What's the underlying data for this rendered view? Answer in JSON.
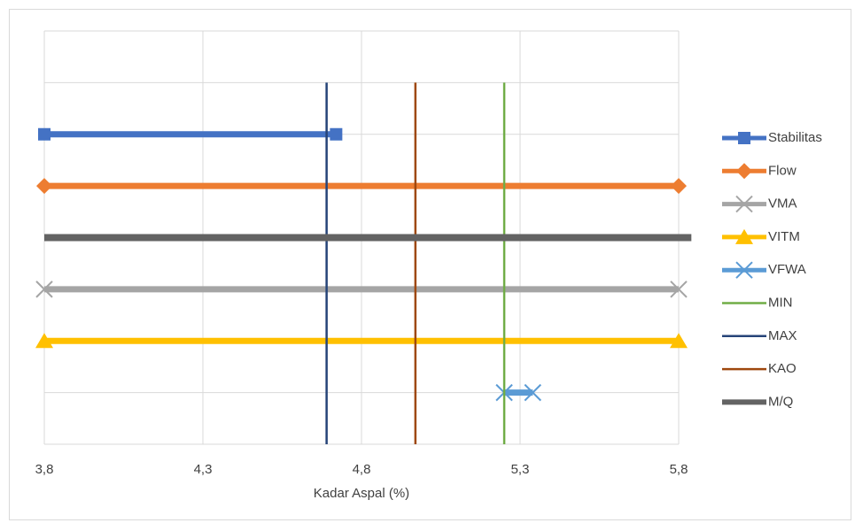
{
  "chart_data": {
    "type": "scatter",
    "x_label": "Kadar Aspal (%)",
    "xlim": [
      3.8,
      5.8
    ],
    "xticks": [
      {
        "value": 3.8,
        "label": "3,8"
      },
      {
        "value": 4.3,
        "label": "4,3"
      },
      {
        "value": 4.8,
        "label": "4,8"
      },
      {
        "value": 5.3,
        "label": "5,3"
      },
      {
        "value": 5.8,
        "label": "5,8"
      }
    ],
    "ylim": [
      0,
      8
    ],
    "yticks": [
      0,
      1,
      2,
      3,
      4,
      5,
      6,
      7,
      8
    ],
    "grid": true,
    "legend": "right",
    "series": [
      {
        "name": "Stabilitas",
        "color": "#4472c4",
        "marker": "square",
        "x": [
          3.8,
          4.72
        ],
        "values": [
          6,
          6
        ]
      },
      {
        "name": "Flow",
        "color": "#ed7d31",
        "marker": "diamond",
        "x": [
          3.8,
          5.8
        ],
        "values": [
          5,
          5
        ]
      },
      {
        "name": "VMA",
        "color": "#a5a5a5",
        "marker": "x",
        "x": [
          3.8,
          5.8
        ],
        "values": [
          3,
          3
        ]
      },
      {
        "name": "VITM",
        "color": "#ffc000",
        "marker": "triangle",
        "x": [
          3.8,
          5.8
        ],
        "values": [
          2,
          2
        ]
      },
      {
        "name": "VFWA",
        "color": "#5b9bd5",
        "marker": "x",
        "x": [
          5.25,
          5.34
        ],
        "values": [
          1,
          1
        ]
      },
      {
        "name": "MIN",
        "color": "#70ad47",
        "marker": "none",
        "x": [
          5.25,
          5.25
        ],
        "values": [
          0,
          7
        ]
      },
      {
        "name": "MAX",
        "color": "#264478",
        "marker": "none",
        "x": [
          4.69,
          4.69
        ],
        "values": [
          0,
          7
        ]
      },
      {
        "name": "KAO",
        "color": "#9e480e",
        "marker": "none",
        "x": [
          4.97,
          4.97
        ],
        "values": [
          0,
          7
        ]
      },
      {
        "name": "M/Q",
        "color": "#636363",
        "marker": "none",
        "x": [
          3.8,
          5.84
        ],
        "values": [
          4,
          4
        ]
      }
    ]
  }
}
